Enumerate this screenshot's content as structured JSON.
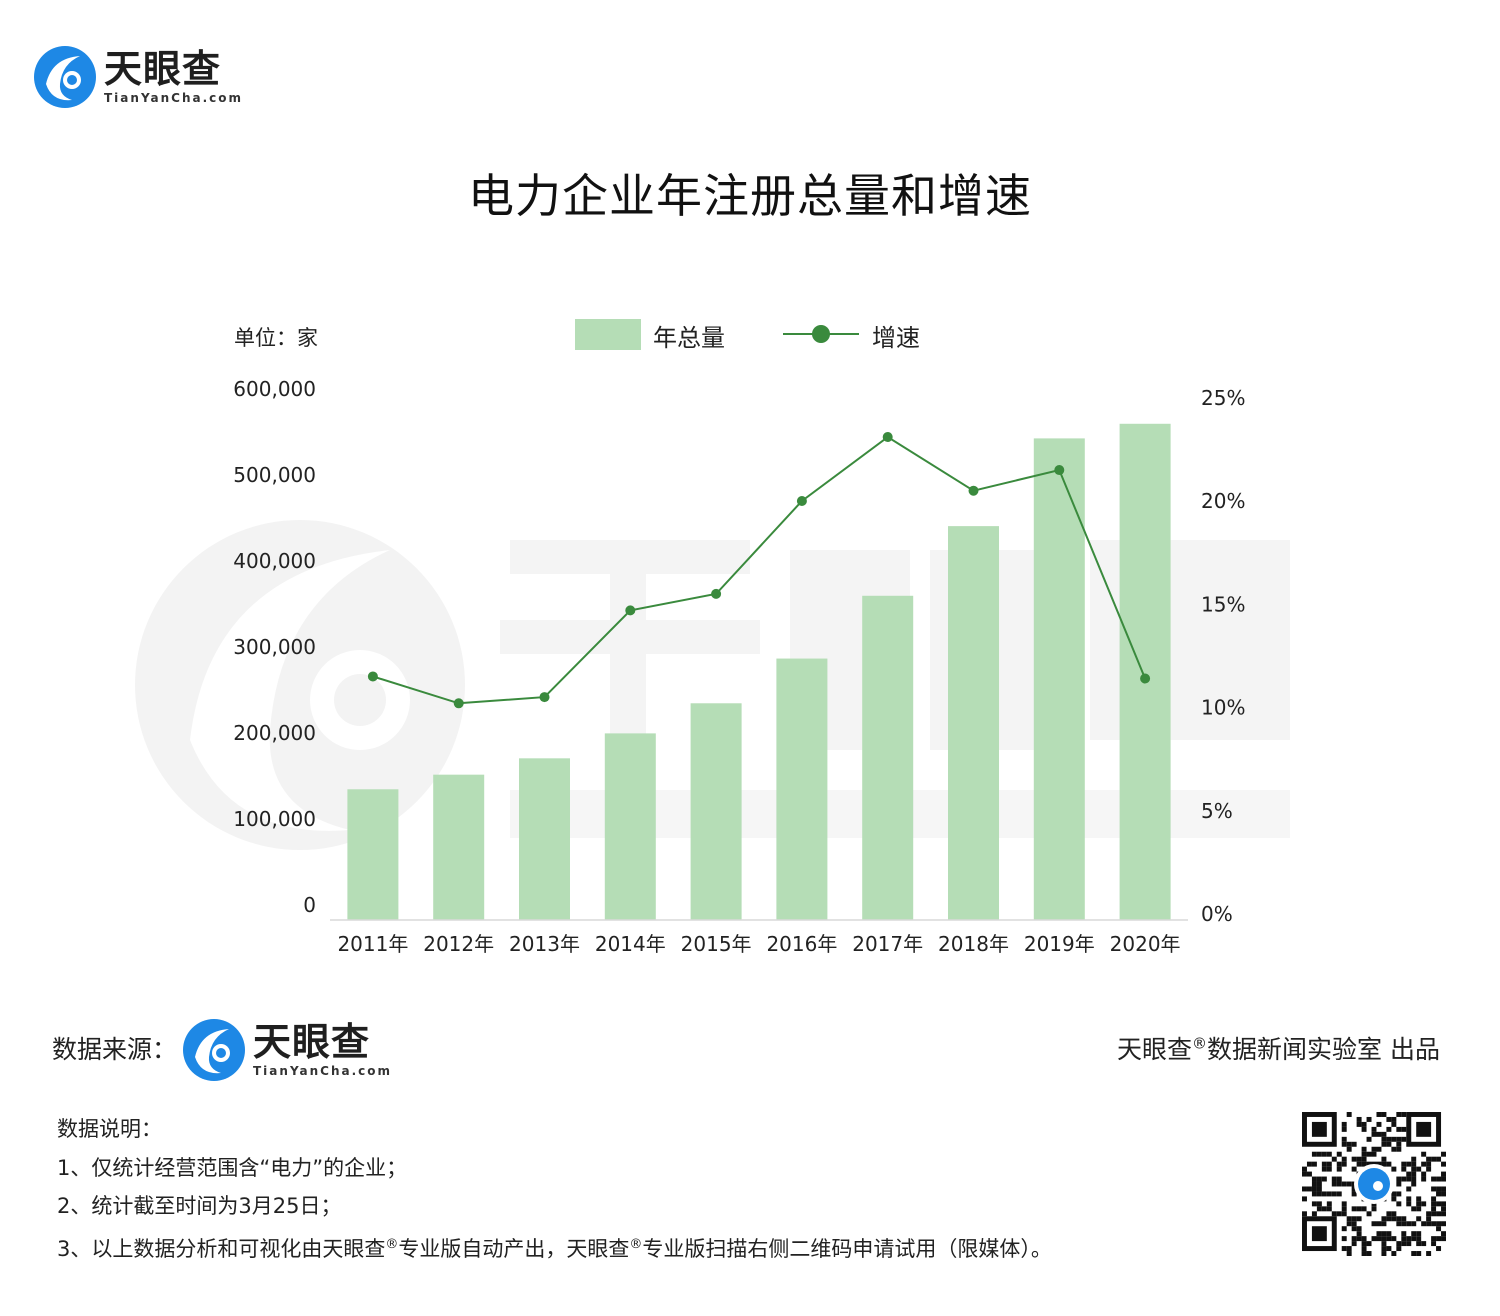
{
  "brand": {
    "name_cn": "天眼查",
    "name_en": "TianYanCha.com",
    "color_blue": "#1e88e5"
  },
  "source_label": "数据来源：",
  "credit": {
    "brand": "天眼查",
    "reg_mark": "®",
    "rest": "数据新闻实验室 出品"
  },
  "notes": {
    "heading": "数据说明：",
    "line1": "1、仅统计经营范围含“电力”的企业；",
    "line2": "2、统计截至时间为3月25日；",
    "line3_part1": "3、以上数据分析和可视化由天眼查",
    "line3_part2": "专业版自动产出，天眼查",
    "line3_part3": "专业版扫描右侧二维码申请试用（限媒体）。",
    "reg_mark": "®"
  },
  "chart_data": {
    "type": "bar",
    "title": "电力企业年注册总量和增速",
    "unit_label": "单位：家",
    "categories": [
      "2011年",
      "2012年",
      "2013年",
      "2014年",
      "2015年",
      "2016年",
      "2017年",
      "2018年",
      "2019年",
      "2020年"
    ],
    "series": [
      {
        "name": "年总量",
        "type": "bar",
        "axis": "left",
        "color": "#b5ddb6",
        "values": [
          152000,
          169000,
          188000,
          217000,
          252000,
          304000,
          377000,
          458000,
          560000,
          577000
        ]
      },
      {
        "name": "增速",
        "type": "line",
        "axis": "right",
        "color": "#3a8a3d",
        "values": [
          11.8,
          10.5,
          10.8,
          15.0,
          15.8,
          20.3,
          23.4,
          20.8,
          21.8,
          11.7
        ]
      }
    ],
    "y_left": {
      "min": 0,
      "max": 600000,
      "ticks": [
        "0",
        "100,000",
        "200,000",
        "300,000",
        "400,000",
        "500,000",
        "600,000"
      ]
    },
    "y_right": {
      "min": 0,
      "max": 25,
      "ticks": [
        "0%",
        "5%",
        "10%",
        "15%",
        "20%",
        "25%"
      ]
    },
    "legend_position": "top-center",
    "grid": false
  }
}
